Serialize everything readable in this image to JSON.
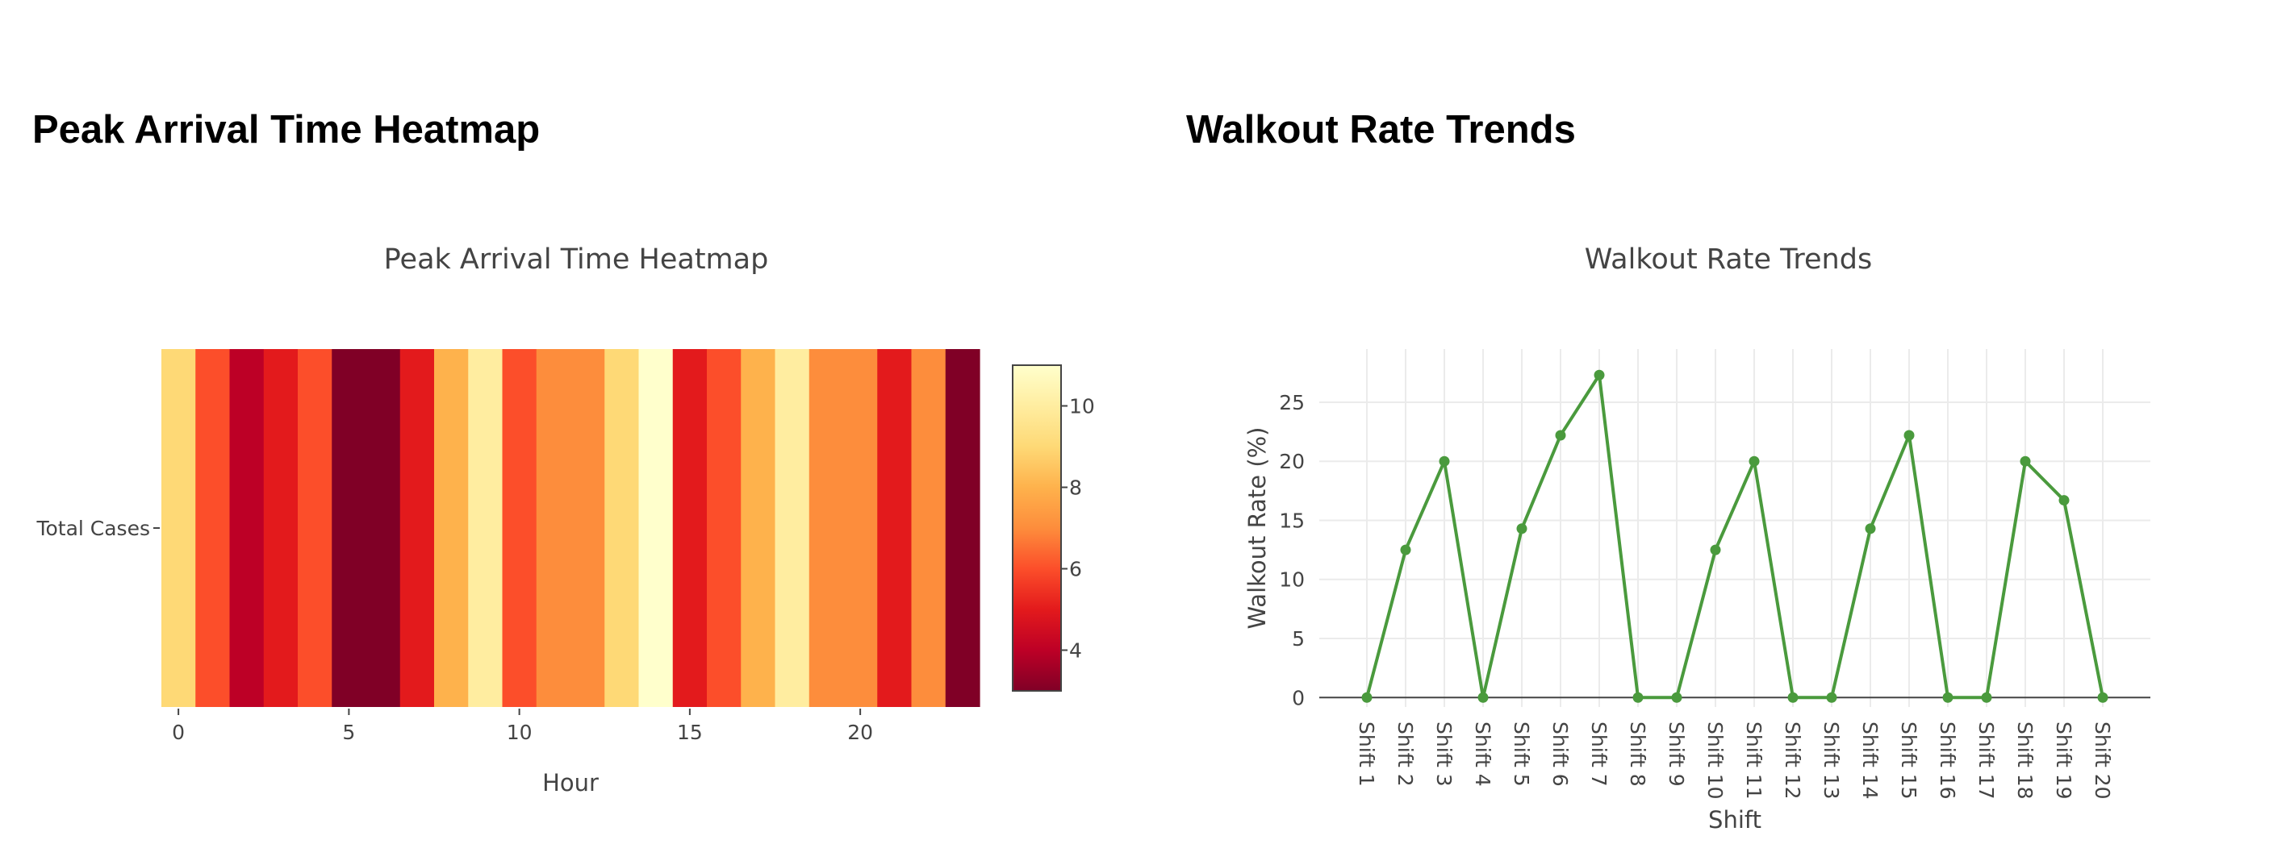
{
  "headings": {
    "left": "Peak Arrival Time Heatmap",
    "right": "Walkout Rate Trends"
  },
  "chart_data": [
    {
      "type": "heatmap",
      "title": "Peak Arrival Time Heatmap",
      "xlabel": "Hour",
      "ylabel": "",
      "x": [
        0,
        1,
        2,
        3,
        4,
        5,
        6,
        7,
        8,
        9,
        10,
        11,
        12,
        13,
        14,
        15,
        16,
        17,
        18,
        19,
        20,
        21,
        22,
        23
      ],
      "y": [
        "Total Cases"
      ],
      "z": [
        [
          9,
          6,
          4,
          5,
          6,
          3,
          3,
          5,
          8,
          10,
          6,
          7,
          7,
          9,
          11,
          5,
          6,
          8,
          10,
          7,
          7,
          5,
          7,
          0
        ]
      ],
      "x_ticks": [
        0,
        5,
        10,
        15,
        20
      ],
      "colorscale": "YlOrRd_reversed",
      "colorbar": {
        "min": 3,
        "max": 11,
        "ticks": [
          4,
          6,
          8,
          10
        ]
      }
    },
    {
      "type": "line",
      "title": "Walkout Rate Trends",
      "xlabel": "Shift",
      "ylabel": "Walkout Rate (%)",
      "categories": [
        "Shift 1",
        "Shift 2",
        "Shift 3",
        "Shift 4",
        "Shift 5",
        "Shift 6",
        "Shift 7",
        "Shift 8",
        "Shift 9",
        "Shift 10",
        "Shift 11",
        "Shift 12",
        "Shift 13",
        "Shift 14",
        "Shift 15",
        "Shift 16",
        "Shift 17",
        "Shift 18",
        "Shift 19",
        "Shift 20"
      ],
      "values": [
        0,
        12.5,
        20,
        0,
        14.3,
        22.2,
        27.3,
        0,
        0,
        12.5,
        20,
        0,
        0,
        14.3,
        22.2,
        0,
        0,
        20,
        16.7,
        0
      ],
      "ylim": [
        -0.8,
        29.5
      ],
      "y_ticks": [
        0,
        5,
        10,
        15,
        20,
        25
      ],
      "color": "#4a9a3d",
      "grid": true
    }
  ]
}
